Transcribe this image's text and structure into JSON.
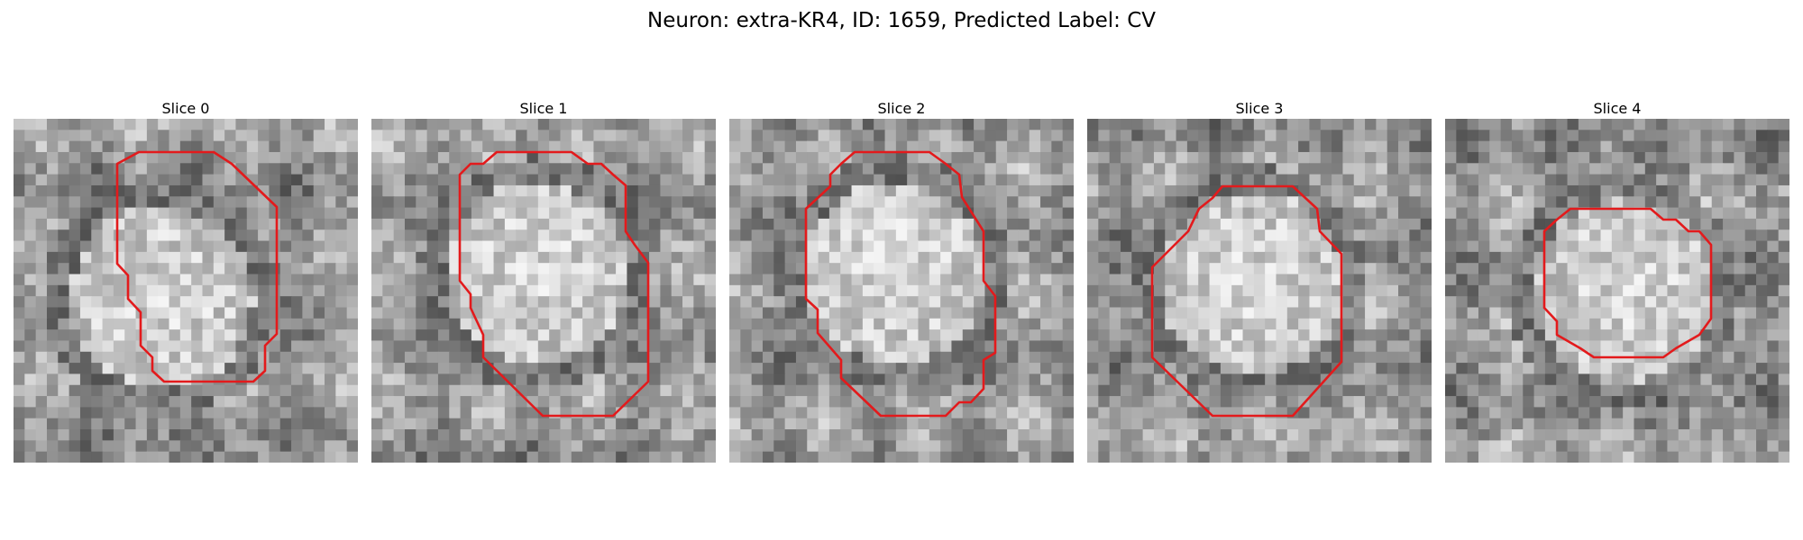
{
  "figure": {
    "title": "Neuron: extra-KR4, ID: 1659, Predicted Label: CV"
  },
  "panels": [
    {
      "title": "Slice 0",
      "outline_color": "#e31a1c",
      "blob_center": [
        0.43,
        0.52
      ]
    },
    {
      "title": "Slice 1",
      "outline_color": "#e31a1c",
      "blob_center": [
        0.48,
        0.45
      ]
    },
    {
      "title": "Slice 2",
      "outline_color": "#e31a1c",
      "blob_center": [
        0.48,
        0.45
      ]
    },
    {
      "title": "Slice 3",
      "outline_color": "#e31a1c",
      "blob_center": [
        0.48,
        0.48
      ]
    },
    {
      "title": "Slice 4",
      "outline_color": "#e31a1c",
      "blob_center": [
        0.52,
        0.5
      ]
    }
  ]
}
